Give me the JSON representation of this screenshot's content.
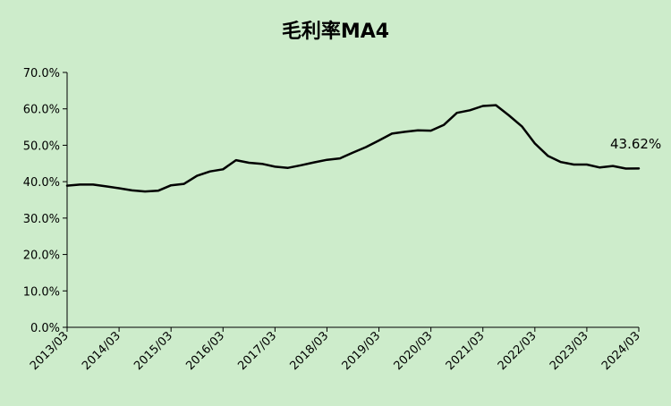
{
  "chart_data": {
    "type": "line",
    "title": "毛利率MA4",
    "xlabel": "",
    "ylabel": "",
    "ylim": [
      0,
      70
    ],
    "y_tick_labels": [
      "0.0%",
      "10.0%",
      "20.0%",
      "30.0%",
      "40.0%",
      "50.0%",
      "60.0%",
      "70.0%"
    ],
    "x_tick_labels": [
      "2013/03",
      "2014/03",
      "2015/03",
      "2016/03",
      "2017/03",
      "2018/03",
      "2019/03",
      "2020/03",
      "2021/03",
      "2022/03",
      "2023/03",
      "2024/03"
    ],
    "grid": false,
    "legend": "none",
    "line_color": "#000000",
    "background_color": "#cdeccb",
    "end_label": "43.62%",
    "series": [
      {
        "x": [
          "2013/03",
          "2013/06",
          "2013/09",
          "2013/12",
          "2014/03",
          "2014/06",
          "2014/09",
          "2014/12",
          "2015/03",
          "2015/06",
          "2015/09",
          "2015/12",
          "2016/03",
          "2016/06",
          "2016/09",
          "2016/12",
          "2017/03",
          "2017/06",
          "2017/09",
          "2017/12",
          "2018/03",
          "2018/06",
          "2018/09",
          "2018/12",
          "2019/03",
          "2019/06",
          "2019/09",
          "2019/12",
          "2020/03",
          "2020/06",
          "2020/09",
          "2020/12",
          "2021/03",
          "2021/06",
          "2021/09",
          "2021/12",
          "2022/03",
          "2022/06",
          "2022/09",
          "2022/12",
          "2023/03",
          "2023/06",
          "2023/09",
          "2023/12",
          "2024/03"
        ],
        "values": [
          38.9,
          39.2,
          39.2,
          38.7,
          38.2,
          37.6,
          37.3,
          37.5,
          39.0,
          39.4,
          41.6,
          42.8,
          43.4,
          45.9,
          45.2,
          44.9,
          44.1,
          43.8,
          44.5,
          45.3,
          46.0,
          46.4,
          48.0,
          49.5,
          51.3,
          53.2,
          53.7,
          54.1,
          54.0,
          55.6,
          58.9,
          59.6,
          60.8,
          61.0,
          58.2,
          55.2,
          50.5,
          47.1,
          45.4,
          44.7,
          44.7,
          43.9,
          44.3,
          43.6,
          43.62
        ]
      }
    ]
  }
}
